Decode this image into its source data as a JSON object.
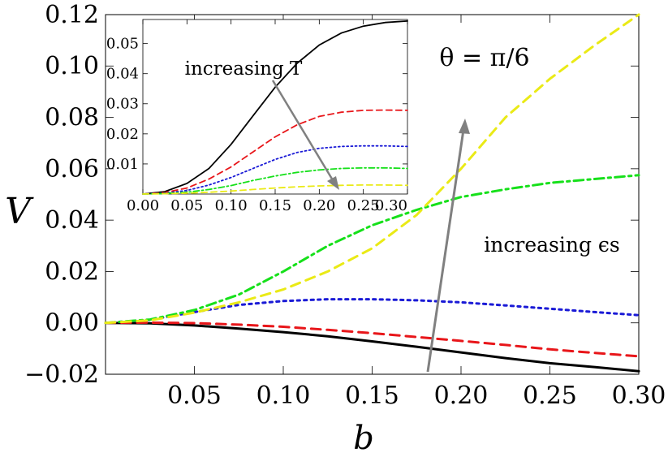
{
  "chart_data": [
    {
      "type": "line",
      "name": "main",
      "xlabel": "b",
      "ylabel": "V",
      "xlim": [
        0,
        0.3
      ],
      "ylim": [
        -0.02,
        0.12
      ],
      "xticks": [
        "0.05",
        "0.10",
        "0.15",
        "0.20",
        "0.25",
        "0.30"
      ],
      "yticks": [
        "−0.02",
        "0.00",
        "0.02",
        "0.04",
        "0.06",
        "0.08",
        "0.10",
        "0.12"
      ],
      "annotation": "θ = π/6",
      "arrow_label": "increasing ϵs",
      "series": [
        {
          "name": "black",
          "color": "#000000",
          "dash": "solid",
          "points": [
            [
              0,
              0
            ],
            [
              0.025,
              -0.0002
            ],
            [
              0.05,
              -0.001
            ],
            [
              0.075,
              -0.0022
            ],
            [
              0.1,
              -0.0036
            ],
            [
              0.125,
              -0.0052
            ],
            [
              0.15,
              -0.0072
            ],
            [
              0.175,
              -0.0093
            ],
            [
              0.2,
              -0.0115
            ],
            [
              0.225,
              -0.0137
            ],
            [
              0.25,
              -0.0157
            ],
            [
              0.275,
              -0.0172
            ],
            [
              0.3,
              -0.0188
            ]
          ]
        },
        {
          "name": "red",
          "color": "#e8161a",
          "dash": "dashed",
          "points": [
            [
              0,
              0
            ],
            [
              0.025,
              0.0001
            ],
            [
              0.05,
              -0.0001
            ],
            [
              0.075,
              -0.0007
            ],
            [
              0.1,
              -0.0015
            ],
            [
              0.125,
              -0.0027
            ],
            [
              0.15,
              -0.004
            ],
            [
              0.175,
              -0.0055
            ],
            [
              0.2,
              -0.007
            ],
            [
              0.225,
              -0.0086
            ],
            [
              0.25,
              -0.0103
            ],
            [
              0.275,
              -0.0117
            ],
            [
              0.3,
              -0.013
            ]
          ]
        },
        {
          "name": "blue",
          "color": "#1a1ad6",
          "dash": "dotted",
          "points": [
            [
              0,
              0
            ],
            [
              0.025,
              0.0012
            ],
            [
              0.05,
              0.0042
            ],
            [
              0.075,
              0.007
            ],
            [
              0.1,
              0.0085
            ],
            [
              0.125,
              0.0092
            ],
            [
              0.15,
              0.0092
            ],
            [
              0.175,
              0.0088
            ],
            [
              0.2,
              0.008
            ],
            [
              0.225,
              0.0068
            ],
            [
              0.25,
              0.0055
            ],
            [
              0.275,
              0.0042
            ],
            [
              0.3,
              0.003
            ]
          ]
        },
        {
          "name": "green",
          "color": "#16e01a",
          "dash": "dashdot",
          "points": [
            [
              0,
              0
            ],
            [
              0.025,
              0.0013
            ],
            [
              0.05,
              0.005
            ],
            [
              0.075,
              0.011
            ],
            [
              0.1,
              0.02
            ],
            [
              0.125,
              0.03
            ],
            [
              0.15,
              0.038
            ],
            [
              0.175,
              0.044
            ],
            [
              0.2,
              0.049
            ],
            [
              0.225,
              0.052
            ],
            [
              0.25,
              0.0545
            ],
            [
              0.275,
              0.056
            ],
            [
              0.3,
              0.0575
            ]
          ]
        },
        {
          "name": "yellow",
          "color": "#eaea16",
          "dash": "dashed",
          "points": [
            [
              0,
              0
            ],
            [
              0.025,
              0.001
            ],
            [
              0.05,
              0.004
            ],
            [
              0.075,
              0.008
            ],
            [
              0.1,
              0.013
            ],
            [
              0.125,
              0.02
            ],
            [
              0.15,
              0.029
            ],
            [
              0.175,
              0.042
            ],
            [
              0.2,
              0.06
            ],
            [
              0.225,
              0.08
            ],
            [
              0.25,
              0.095
            ],
            [
              0.275,
              0.108
            ],
            [
              0.3,
              0.12
            ]
          ]
        }
      ]
    },
    {
      "type": "line",
      "name": "inset",
      "xlim": [
        0,
        0.3
      ],
      "ylim": [
        0,
        0.058
      ],
      "xticks": [
        "0.00",
        "0.05",
        "0.10",
        "0.15",
        "0.20",
        "0.25",
        "0.30"
      ],
      "yticks": [
        "0.01",
        "0.02",
        "0.03",
        "0.04",
        "0.05"
      ],
      "arrow_label": "increasing T",
      "series": [
        {
          "name": "black",
          "color": "#000000",
          "dash": "solid",
          "points": [
            [
              0,
              0
            ],
            [
              0.025,
              0.0008
            ],
            [
              0.05,
              0.0035
            ],
            [
              0.075,
              0.0085
            ],
            [
              0.1,
              0.0165
            ],
            [
              0.125,
              0.026
            ],
            [
              0.15,
              0.0355
            ],
            [
              0.175,
              0.0435
            ],
            [
              0.2,
              0.0495
            ],
            [
              0.225,
              0.0535
            ],
            [
              0.25,
              0.0558
            ],
            [
              0.275,
              0.057
            ],
            [
              0.3,
              0.0575
            ]
          ]
        },
        {
          "name": "red",
          "color": "#e8161a",
          "dash": "dashed",
          "points": [
            [
              0,
              0
            ],
            [
              0.025,
              0.0005
            ],
            [
              0.05,
              0.002
            ],
            [
              0.075,
              0.005
            ],
            [
              0.1,
              0.009
            ],
            [
              0.125,
              0.014
            ],
            [
              0.15,
              0.019
            ],
            [
              0.175,
              0.023
            ],
            [
              0.2,
              0.0258
            ],
            [
              0.225,
              0.0272
            ],
            [
              0.25,
              0.0278
            ],
            [
              0.275,
              0.0279
            ],
            [
              0.3,
              0.0278
            ]
          ]
        },
        {
          "name": "blue",
          "color": "#1a1ad6",
          "dash": "dotted",
          "points": [
            [
              0,
              0
            ],
            [
              0.025,
              0.0003
            ],
            [
              0.05,
              0.0012
            ],
            [
              0.075,
              0.003
            ],
            [
              0.1,
              0.0055
            ],
            [
              0.125,
              0.0085
            ],
            [
              0.15,
              0.0115
            ],
            [
              0.175,
              0.0138
            ],
            [
              0.2,
              0.0152
            ],
            [
              0.225,
              0.0158
            ],
            [
              0.25,
              0.016
            ],
            [
              0.275,
              0.016
            ],
            [
              0.3,
              0.0158
            ]
          ]
        },
        {
          "name": "green",
          "color": "#16e01a",
          "dash": "dashdot",
          "points": [
            [
              0,
              0
            ],
            [
              0.025,
              0.0002
            ],
            [
              0.05,
              0.0006
            ],
            [
              0.075,
              0.0015
            ],
            [
              0.1,
              0.0028
            ],
            [
              0.125,
              0.0045
            ],
            [
              0.15,
              0.006
            ],
            [
              0.175,
              0.0072
            ],
            [
              0.2,
              0.008
            ],
            [
              0.225,
              0.0085
            ],
            [
              0.25,
              0.0087
            ],
            [
              0.275,
              0.0087
            ],
            [
              0.3,
              0.0085
            ]
          ]
        },
        {
          "name": "yellow",
          "color": "#eaea16",
          "dash": "dashed",
          "points": [
            [
              0,
              0
            ],
            [
              0.025,
              0.0001
            ],
            [
              0.05,
              0.0003
            ],
            [
              0.075,
              0.0006
            ],
            [
              0.1,
              0.001
            ],
            [
              0.125,
              0.0015
            ],
            [
              0.15,
              0.002
            ],
            [
              0.175,
              0.0024
            ],
            [
              0.2,
              0.0027
            ],
            [
              0.225,
              0.0029
            ],
            [
              0.25,
              0.003
            ],
            [
              0.275,
              0.003
            ],
            [
              0.3,
              0.0029
            ]
          ]
        }
      ]
    }
  ]
}
